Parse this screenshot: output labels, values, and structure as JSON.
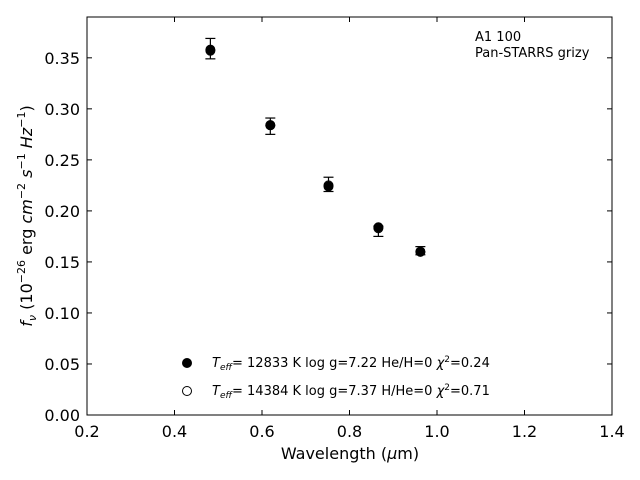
{
  "chart_data": {
    "type": "scatter",
    "annotation": [
      "A1 100",
      "Pan-STARRS grizy"
    ],
    "xlabel": "Wavelength (μm)",
    "ylabel": "f_ν (10^-26 erg cm^-2 s^-1 Hz^-1)",
    "xlim": [
      0.2,
      1.4
    ],
    "ylim": [
      0.0,
      0.39
    ],
    "xticks": [
      0.2,
      0.4,
      0.6,
      0.8,
      1.0,
      1.2,
      1.4
    ],
    "xtick_labels": [
      "0.2",
      "0.4",
      "0.6",
      "0.8",
      "1.0",
      "1.2",
      "1.4"
    ],
    "yticks": [
      0.0,
      0.05,
      0.1,
      0.15,
      0.2,
      0.25,
      0.3,
      0.35
    ],
    "ytick_labels": [
      "0.00",
      "0.05",
      "0.10",
      "0.15",
      "0.20",
      "0.25",
      "0.30",
      "0.35"
    ],
    "grid": false,
    "legend_placement": "lower-center",
    "observed": {
      "x": [
        0.482,
        0.619,
        0.752,
        0.866,
        0.962
      ],
      "y": [
        0.359,
        0.283,
        0.226,
        0.18,
        0.161
      ],
      "yerr": [
        0.01,
        0.008,
        0.007,
        0.005,
        0.004
      ]
    },
    "series": [
      {
        "name": "T_eff= 12833 K  log g=7.22  He/H=0  χ²=0.24",
        "marker": "filled-circle",
        "x": [
          0.482,
          0.619,
          0.752,
          0.866,
          0.962
        ],
        "y": [
          0.358,
          0.284,
          0.224,
          0.184,
          0.16
        ]
      },
      {
        "name": "T_eff= 14384 K  log g=7.37  H/He=0  χ²=0.71",
        "marker": "open-circle",
        "x": [
          0.482,
          0.619,
          0.752,
          0.866,
          0.962
        ],
        "y": [
          0.357,
          0.284,
          0.225,
          0.183,
          0.16
        ]
      }
    ]
  }
}
